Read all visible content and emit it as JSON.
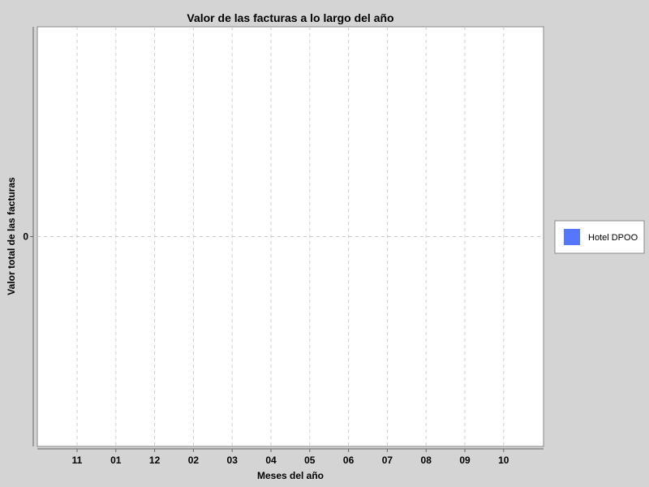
{
  "chart_data": {
    "type": "bar",
    "title": "Valor de las facturas a lo largo del año",
    "xlabel": "Meses del año",
    "ylabel": "Valor total de las facturas",
    "categories": [
      "11",
      "01",
      "12",
      "02",
      "03",
      "04",
      "05",
      "06",
      "07",
      "08",
      "09",
      "10"
    ],
    "series": [
      {
        "name": "Hotel DPOO",
        "values": [
          0,
          0,
          0,
          0,
          0,
          0,
          0,
          0,
          0,
          0,
          0,
          0
        ],
        "color": "#5577ff"
      }
    ],
    "yticks": [
      "0"
    ],
    "ylim": [
      -1,
      1
    ],
    "grid": true,
    "legend_position": "right"
  }
}
